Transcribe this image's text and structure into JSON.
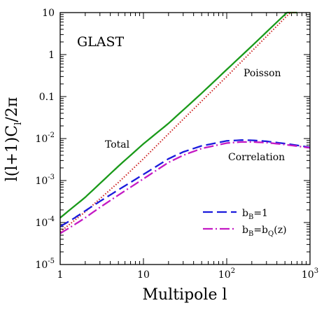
{
  "chart_data": {
    "type": "line",
    "title": "GLAST",
    "xlabel": "Multipole l",
    "ylabel": "l(l+1)C_l/2π",
    "xscale": "log",
    "yscale": "log",
    "xlim": [
      1,
      1000
    ],
    "ylim": [
      1e-05,
      10
    ],
    "x_ticks": [
      {
        "value": 1,
        "label": "1"
      },
      {
        "value": 10,
        "label": "10"
      },
      {
        "value": 100,
        "label": "10",
        "exp": "2"
      },
      {
        "value": 1000,
        "label": "10",
        "exp": "3"
      }
    ],
    "y_ticks": [
      {
        "value": 1e-05,
        "label": "10",
        "exp": "-5"
      },
      {
        "value": 0.0001,
        "label": "10",
        "exp": "-4"
      },
      {
        "value": 0.001,
        "label": "10",
        "exp": "-3"
      },
      {
        "value": 0.01,
        "label": "10",
        "exp": "-2"
      },
      {
        "value": 0.1,
        "label": "0.1"
      },
      {
        "value": 1,
        "label": "1"
      },
      {
        "value": 10,
        "label": "10"
      }
    ],
    "annotations": {
      "total": "Total",
      "poisson": "Poisson",
      "correlation": "Correlation"
    },
    "legend": {
      "position": "bottom-right",
      "entries": [
        {
          "base": "b",
          "sub": "B",
          "rest": "=1"
        },
        {
          "base": "b",
          "sub": "B",
          "rest": "=b",
          "sub2": "Q",
          "rest2": "(z)"
        }
      ]
    },
    "series": [
      {
        "id": "total",
        "color": "#1a9a1a",
        "style": "solid",
        "x": [
          1,
          2,
          3,
          5,
          10,
          20,
          50,
          100,
          200,
          500,
          700
        ],
        "y": [
          0.00013,
          0.0004,
          0.00085,
          0.0022,
          0.0075,
          0.023,
          0.12,
          0.44,
          1.6,
          9.0,
          17.0
        ]
      },
      {
        "id": "poisson",
        "color": "#cc2020",
        "style": "dotted",
        "x": [
          1,
          2,
          5,
          10,
          20,
          50,
          100,
          200,
          500,
          700
        ],
        "y": [
          6e-05,
          0.00018,
          0.0009,
          0.0033,
          0.013,
          0.078,
          0.3,
          1.2,
          7.5,
          14.5
        ]
      },
      {
        "id": "bB1",
        "name": "b_B=1",
        "color": "#1a1adc",
        "style": "dashed",
        "x": [
          1,
          1.5,
          2,
          3,
          5,
          10,
          20,
          30,
          50,
          100,
          150,
          200,
          300,
          500,
          1000
        ],
        "y": [
          8e-05,
          0.00013,
          0.00019,
          0.00032,
          0.0006,
          0.0014,
          0.0033,
          0.0048,
          0.0067,
          0.0088,
          0.0092,
          0.0091,
          0.0086,
          0.0076,
          0.0062
        ]
      },
      {
        "id": "bQ",
        "name": "b_B=b_Q(z)",
        "color": "#c41ac4",
        "style": "dashdot",
        "x": [
          1,
          1.5,
          2,
          3,
          5,
          10,
          20,
          30,
          50,
          100,
          150,
          200,
          300,
          500,
          1000
        ],
        "y": [
          5.5e-05,
          9e-05,
          0.00013,
          0.00023,
          0.00045,
          0.0011,
          0.0027,
          0.004,
          0.0058,
          0.0078,
          0.0083,
          0.0083,
          0.008,
          0.0072,
          0.006
        ]
      }
    ]
  }
}
